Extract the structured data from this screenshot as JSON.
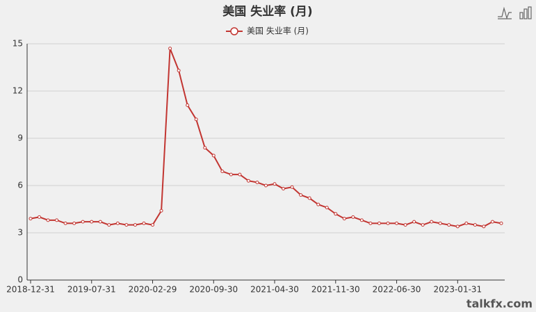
{
  "chart_data": {
    "type": "line",
    "title": "美国 失业率 (月)",
    "categories": [
      "2018-12-31",
      null,
      null,
      null,
      null,
      null,
      null,
      "2019-07-31",
      null,
      null,
      null,
      null,
      null,
      null,
      "2020-02-29",
      null,
      null,
      null,
      null,
      null,
      null,
      "2020-09-30",
      null,
      null,
      null,
      null,
      null,
      null,
      "2021-04-30",
      null,
      null,
      null,
      null,
      null,
      null,
      "2021-11-30",
      null,
      null,
      null,
      null,
      null,
      null,
      "2022-06-30",
      null,
      null,
      null,
      null,
      null,
      null,
      "2023-01-31",
      null,
      null,
      null,
      null,
      null
    ],
    "series": [
      {
        "name": "美国 失业率 (月)",
        "color": "#c23531",
        "values": [
          3.9,
          4.0,
          3.8,
          3.8,
          3.6,
          3.6,
          3.7,
          3.7,
          3.7,
          3.5,
          3.6,
          3.5,
          3.5,
          3.6,
          3.5,
          4.4,
          14.7,
          13.3,
          11.1,
          10.2,
          8.4,
          7.9,
          6.9,
          6.7,
          6.7,
          6.3,
          6.2,
          6.0,
          6.1,
          5.8,
          5.9,
          5.4,
          5.2,
          4.8,
          4.6,
          4.2,
          3.9,
          4.0,
          3.8,
          3.6,
          3.6,
          3.6,
          3.6,
          3.5,
          3.7,
          3.5,
          3.7,
          3.6,
          3.5,
          3.4,
          3.6,
          3.5,
          3.4,
          3.7,
          3.6
        ]
      }
    ],
    "ylim": [
      0,
      15
    ],
    "yticks": [
      0,
      3,
      6,
      9,
      12,
      15
    ],
    "grid": true,
    "legend": "top",
    "watermark": "talkfx.com"
  }
}
